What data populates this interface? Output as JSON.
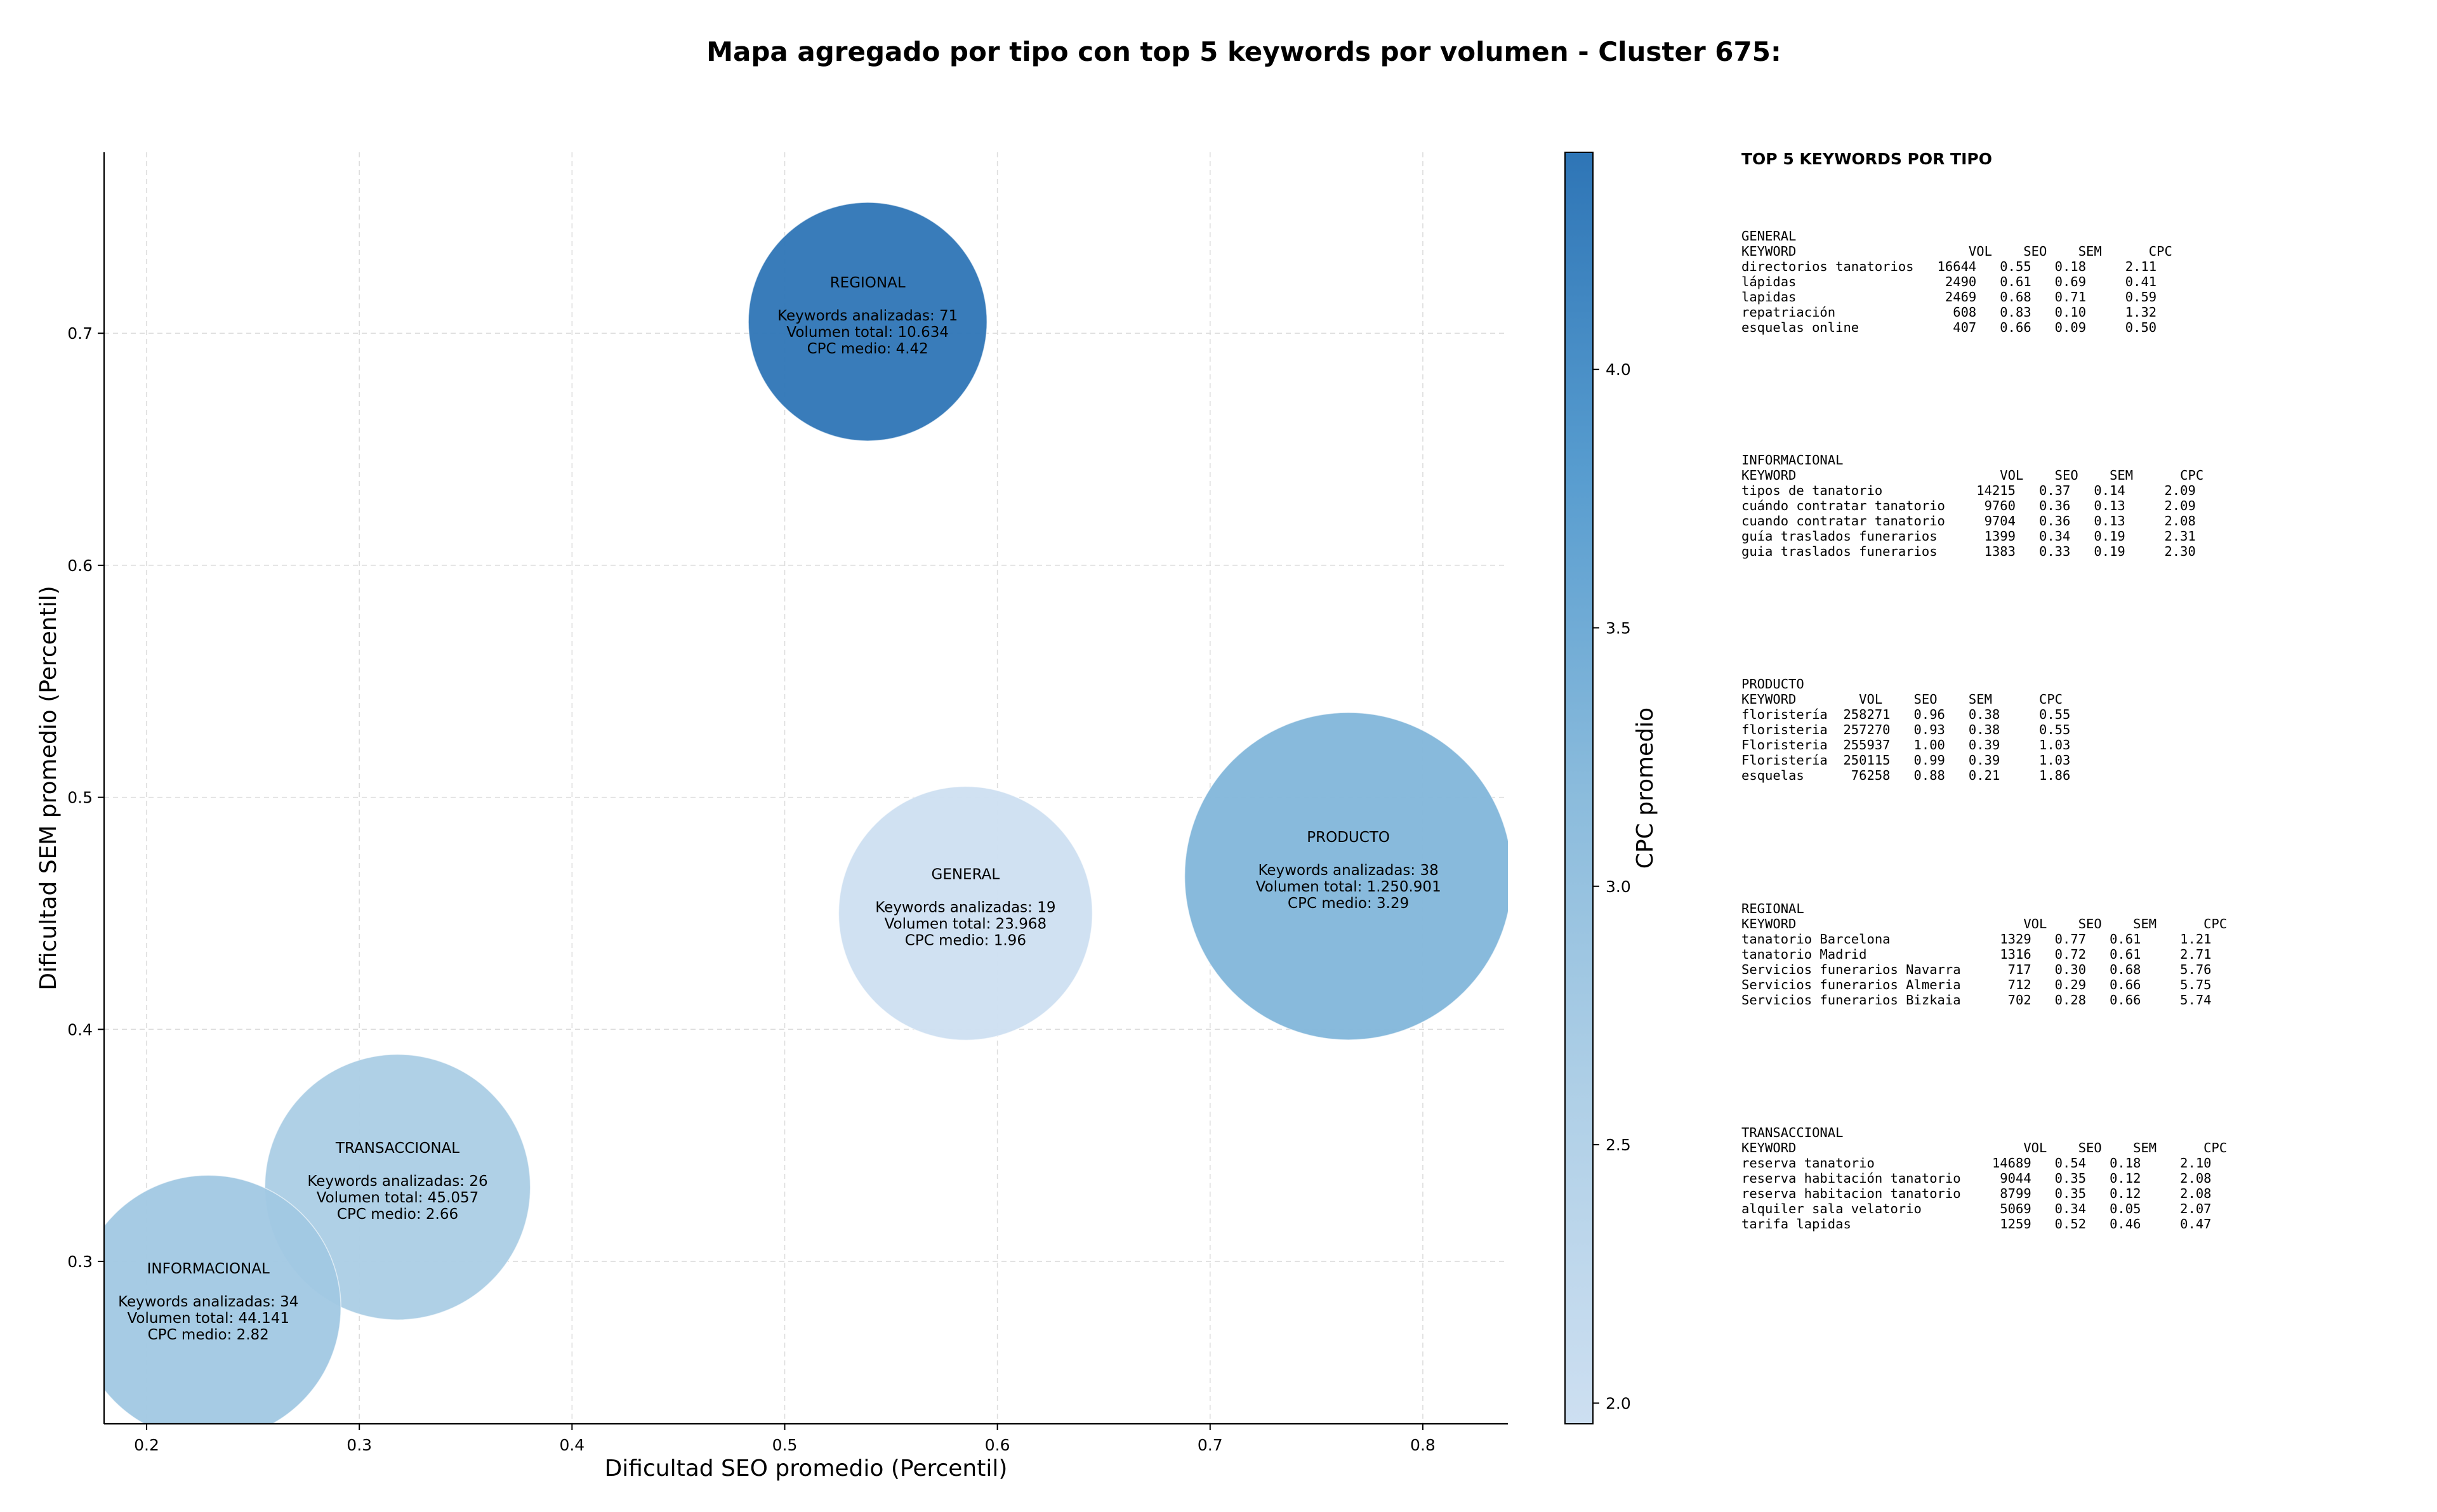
{
  "chart_data": {
    "type": "scatter",
    "title": "Mapa agregado por tipo con top 5 keywords por volumen - Cluster 675:",
    "xlabel": "Dificultad SEO promedio (Percentil)",
    "ylabel": "Dificultad SEM promedio (Percentil)",
    "xlim": [
      0.18,
      0.84
    ],
    "ylim": [
      0.23,
      0.778
    ],
    "xticks": [
      0.2,
      0.3,
      0.4,
      0.5,
      0.6,
      0.7,
      0.8
    ],
    "yticks": [
      0.3,
      0.4,
      0.5,
      0.6,
      0.7
    ],
    "grid": true,
    "colorbar": {
      "label": "CPC promedio",
      "range": [
        1.96,
        4.42
      ],
      "ticks": [
        2.0,
        2.5,
        3.0,
        3.5,
        4.0
      ],
      "colormap": "Blues"
    },
    "bubble_text": {
      "keywords_label": "Keywords analizadas:",
      "volume_label": "Volumen total:",
      "cpc_label": "CPC medio:"
    },
    "points": [
      {
        "name": "REGIONAL",
        "x": 0.539,
        "y": 0.705,
        "keywords": 71,
        "volume": "10.634",
        "volume_value": 10634,
        "cpc": 4.42
      },
      {
        "name": "GENERAL",
        "x": 0.585,
        "y": 0.45,
        "keywords": 19,
        "volume": "23.968",
        "volume_value": 23968,
        "cpc": 1.96
      },
      {
        "name": "PRODUCTO",
        "x": 0.765,
        "y": 0.466,
        "keywords": 38,
        "volume": "1.250.901",
        "volume_value": 1250901,
        "cpc": 3.29
      },
      {
        "name": "TRANSACCIONAL",
        "x": 0.318,
        "y": 0.332,
        "keywords": 26,
        "volume": "45.057",
        "volume_value": 45057,
        "cpc": 2.66
      },
      {
        "name": "INFORMACIONAL",
        "x": 0.229,
        "y": 0.28,
        "keywords": 34,
        "volume": "44.141",
        "volume_value": 44141,
        "cpc": 2.82
      }
    ]
  },
  "side_panel": {
    "title": "TOP 5 KEYWORDS POR TIPO",
    "blocks": [
      {
        "name": "GENERAL",
        "lines": [
          "GENERAL",
          "KEYWORD                      VOL    SEO    SEM      CPC",
          "directorios tanatorios   16644   0.55   0.18     2.11",
          "lápidas                   2490   0.61   0.69     0.41",
          "lapidas                   2469   0.68   0.71     0.59",
          "repatriación               608   0.83   0.10     1.32",
          "esquelas online            407   0.66   0.09     0.50"
        ]
      },
      {
        "name": "INFORMACIONAL",
        "lines": [
          "INFORMACIONAL",
          "KEYWORD                          VOL    SEO    SEM      CPC",
          "tipos de tanatorio            14215   0.37   0.14     2.09",
          "cuándo contratar tanatorio     9760   0.36   0.13     2.09",
          "cuando contratar tanatorio     9704   0.36   0.13     2.08",
          "guía traslados funerarios      1399   0.34   0.19     2.31",
          "guia traslados funerarios      1383   0.33   0.19     2.30"
        ]
      },
      {
        "name": "PRODUCTO",
        "lines": [
          "PRODUCTO",
          "KEYWORD        VOL    SEO    SEM      CPC",
          "floristería  258271   0.96   0.38     0.55",
          "floristeria  257270   0.93   0.38     0.55",
          "Floristeria  255937   1.00   0.39     1.03",
          "Floristería  250115   0.99   0.39     1.03",
          "esquelas      76258   0.88   0.21     1.86"
        ]
      },
      {
        "name": "REGIONAL",
        "lines": [
          "REGIONAL",
          "KEYWORD                             VOL    SEO    SEM      CPC",
          "tanatorio Barcelona              1329   0.77   0.61     1.21",
          "tanatorio Madrid                 1316   0.72   0.61     2.71",
          "Servicios funerarios Navarra      717   0.30   0.68     5.76",
          "Servicios funerarios Almeria      712   0.29   0.66     5.75",
          "Servicios funerarios Bizkaia      702   0.28   0.66     5.74"
        ]
      },
      {
        "name": "TRANSACCIONAL",
        "lines": [
          "TRANSACCIONAL",
          "KEYWORD                             VOL    SEO    SEM      CPC",
          "reserva tanatorio               14689   0.54   0.18     2.10",
          "reserva habitación tanatorio     9044   0.35   0.12     2.08",
          "reserva habitacion tanatorio     8799   0.35   0.12     2.08",
          "alquiler sala velatorio          5069   0.34   0.05     2.07",
          "tarifa lapidas                   1259   0.52   0.46     0.47"
        ]
      }
    ]
  }
}
